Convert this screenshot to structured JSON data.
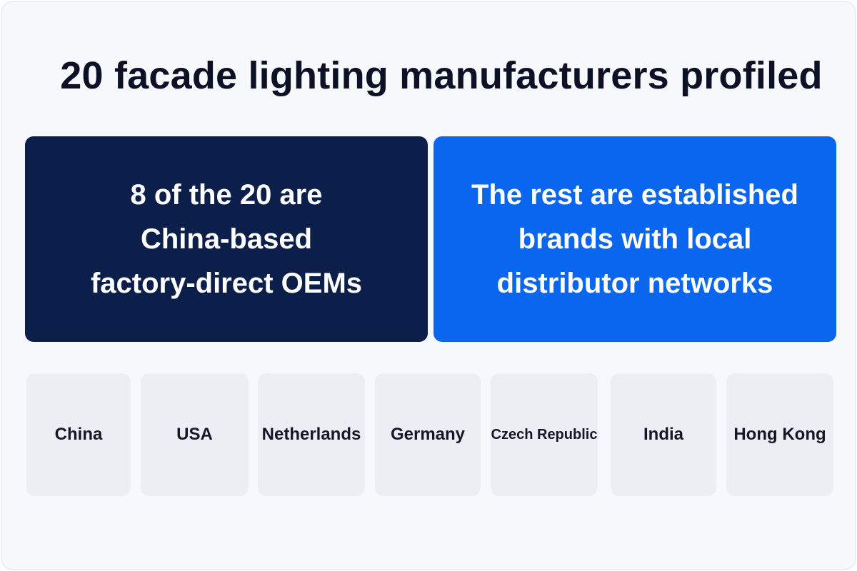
{
  "title": "20 facade lighting manufacturers profiled",
  "panels": {
    "left": {
      "lines": [
        "8 of the 20 are",
        "China-based",
        "factory-direct OEMs"
      ],
      "color": "#0c1f4b"
    },
    "right": {
      "lines": [
        "The rest are established",
        "brands with local",
        "distributor networks"
      ],
      "color": "#0a66ee"
    }
  },
  "countries": [
    {
      "label": "China"
    },
    {
      "label": "USA"
    },
    {
      "label": "Netherlands"
    },
    {
      "label": "Germany"
    },
    {
      "label": "Czech Republic"
    },
    {
      "label": "India"
    },
    {
      "label": "Hong Kong"
    }
  ]
}
